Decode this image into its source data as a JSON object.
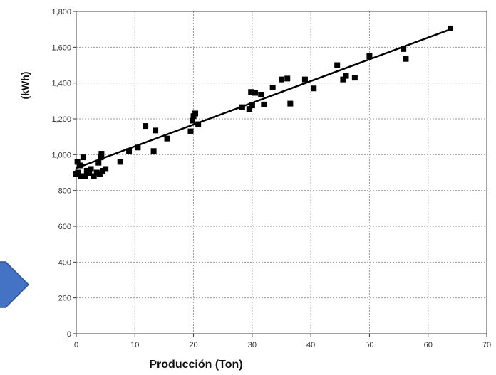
{
  "chart_data": {
    "type": "scatter",
    "xlabel": "Producción (Ton)",
    "ylabel": "(kWh)",
    "xlim": [
      0,
      70
    ],
    "ylim": [
      0,
      1800
    ],
    "xticks": [
      0,
      10,
      20,
      30,
      40,
      50,
      60,
      70
    ],
    "yticks": [
      0,
      200,
      400,
      600,
      800,
      1000,
      1200,
      1400,
      1600,
      1800
    ],
    "xtick_labels": [
      "0",
      "10",
      "20",
      "30",
      "40",
      "50",
      "60",
      "70"
    ],
    "ytick_labels": [
      "0",
      "200",
      "400",
      "600",
      "800",
      "1,000",
      "1,200",
      "1,400",
      "1,600",
      "1,800"
    ],
    "grid": true,
    "series": [
      {
        "marker": "square",
        "color": "#000000",
        "points": [
          [
            0,
            890
          ],
          [
            0.2,
            960
          ],
          [
            0.3,
            900
          ],
          [
            0.6,
            940
          ],
          [
            0.8,
            880
          ],
          [
            1.2,
            985
          ],
          [
            1.5,
            880
          ],
          [
            1.8,
            910
          ],
          [
            2.2,
            895
          ],
          [
            2.5,
            920
          ],
          [
            3.0,
            880
          ],
          [
            3.5,
            900
          ],
          [
            3.8,
            955
          ],
          [
            4.0,
            890
          ],
          [
            4.2,
            985
          ],
          [
            4.3,
            1005
          ],
          [
            4.5,
            910
          ],
          [
            5.0,
            920
          ],
          [
            7.5,
            960
          ],
          [
            9.0,
            1020
          ],
          [
            10.5,
            1040
          ],
          [
            11.8,
            1160
          ],
          [
            13.2,
            1020
          ],
          [
            13.5,
            1135
          ],
          [
            15.5,
            1090
          ],
          [
            19.5,
            1130
          ],
          [
            19.8,
            1190
          ],
          [
            20.0,
            1215
          ],
          [
            20.3,
            1230
          ],
          [
            20.8,
            1170
          ],
          [
            28.3,
            1265
          ],
          [
            29.5,
            1255
          ],
          [
            29.8,
            1350
          ],
          [
            30.0,
            1275
          ],
          [
            30.5,
            1345
          ],
          [
            31.5,
            1335
          ],
          [
            32.0,
            1280
          ],
          [
            33.5,
            1375
          ],
          [
            35.0,
            1420
          ],
          [
            36.0,
            1425
          ],
          [
            36.5,
            1285
          ],
          [
            39.0,
            1420
          ],
          [
            40.5,
            1370
          ],
          [
            44.5,
            1500
          ],
          [
            45.5,
            1420
          ],
          [
            46.0,
            1440
          ],
          [
            47.5,
            1430
          ],
          [
            50.0,
            1550
          ],
          [
            55.8,
            1590
          ],
          [
            56.2,
            1535
          ],
          [
            63.8,
            1705
          ]
        ]
      }
    ],
    "trendline": {
      "x": [
        0,
        63.8
      ],
      "y": [
        925,
        1700
      ],
      "color": "#000000"
    }
  },
  "decor": {
    "arrow_color": "#4472C4",
    "arrow_border": "#2F528F"
  }
}
